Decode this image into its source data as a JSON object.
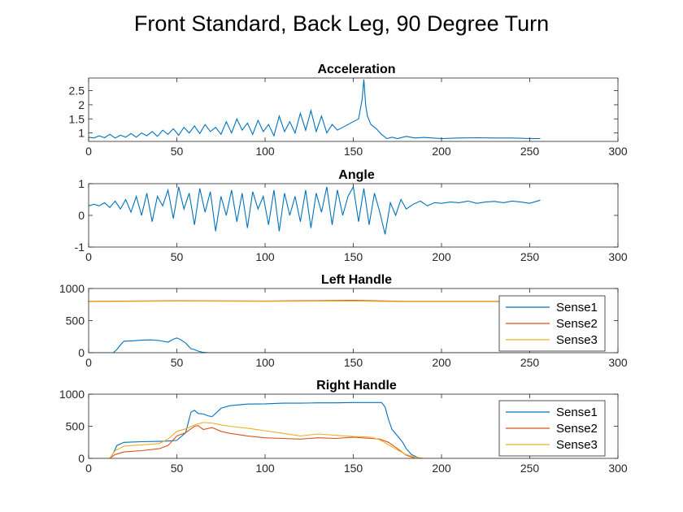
{
  "figure": {
    "title": "Front Standard, Back Leg, 90 Degree Turn"
  },
  "chart_data": [
    {
      "type": "line",
      "title": "Acceleration",
      "xlabel": "",
      "ylabel": "",
      "xlim": [
        0,
        300
      ],
      "ylim": [
        0.7,
        2.95
      ],
      "xticks": [
        0,
        50,
        100,
        150,
        200,
        250,
        300
      ],
      "yticks": [
        1,
        1.5,
        2,
        2.5
      ],
      "ytick_labels": [
        "1",
        "1.5",
        "2",
        "2.5"
      ],
      "legend": null,
      "series": [
        {
          "color": "#0072BD",
          "x": [
            0,
            3,
            6,
            9,
            12,
            15,
            18,
            21,
            24,
            27,
            30,
            33,
            36,
            39,
            42,
            45,
            48,
            51,
            54,
            57,
            60,
            63,
            66,
            69,
            72,
            75,
            78,
            81,
            84,
            87,
            90,
            93,
            96,
            99,
            102,
            105,
            108,
            111,
            114,
            117,
            120,
            123,
            126,
            129,
            132,
            135,
            138,
            141,
            144,
            147,
            150,
            153,
            155,
            156,
            157,
            158,
            160,
            163,
            166,
            169,
            172,
            175,
            180,
            185,
            190,
            195,
            200,
            210,
            220,
            230,
            240,
            250,
            256
          ],
          "y": [
            0.85,
            0.82,
            0.9,
            0.83,
            0.95,
            0.82,
            0.92,
            0.85,
            0.98,
            0.85,
            1.0,
            0.9,
            1.05,
            0.88,
            1.1,
            0.95,
            1.15,
            0.92,
            1.2,
            1.0,
            1.25,
            0.98,
            1.3,
            1.05,
            1.2,
            0.95,
            1.4,
            1.0,
            1.5,
            1.1,
            1.35,
            0.95,
            1.45,
            1.05,
            1.3,
            0.9,
            1.6,
            1.05,
            1.4,
            1.0,
            1.7,
            1.1,
            1.8,
            1.05,
            1.6,
            1.0,
            1.3,
            1.1,
            1.2,
            1.3,
            1.4,
            1.5,
            2.2,
            2.9,
            2.0,
            1.6,
            1.3,
            1.15,
            0.95,
            0.8,
            0.85,
            0.8,
            0.88,
            0.82,
            0.84,
            0.82,
            0.8,
            0.82,
            0.83,
            0.82,
            0.82,
            0.8,
            0.8
          ]
        }
      ]
    },
    {
      "type": "line",
      "title": "Angle",
      "xlabel": "",
      "ylabel": "",
      "xlim": [
        0,
        300
      ],
      "ylim": [
        -1,
        1
      ],
      "xticks": [
        0,
        50,
        100,
        150,
        200,
        250,
        300
      ],
      "yticks": [
        -1,
        0,
        1
      ],
      "ytick_labels": [
        "-1",
        "0",
        "1"
      ],
      "legend": null,
      "series": [
        {
          "color": "#0072BD",
          "x": [
            0,
            3,
            6,
            9,
            12,
            15,
            18,
            21,
            24,
            27,
            30,
            33,
            36,
            39,
            42,
            45,
            48,
            51,
            54,
            57,
            60,
            63,
            66,
            69,
            72,
            75,
            78,
            81,
            84,
            87,
            90,
            93,
            96,
            99,
            102,
            105,
            108,
            111,
            114,
            117,
            120,
            123,
            126,
            129,
            132,
            135,
            138,
            141,
            144,
            147,
            150,
            153,
            156,
            159,
            162,
            165,
            168,
            171,
            174,
            177,
            180,
            184,
            188,
            192,
            196,
            200,
            205,
            210,
            215,
            220,
            225,
            230,
            235,
            240,
            245,
            250,
            256
          ],
          "y": [
            0.3,
            0.35,
            0.3,
            0.4,
            0.25,
            0.45,
            0.2,
            0.5,
            0.1,
            0.6,
            0.0,
            0.7,
            -0.2,
            0.6,
            0.3,
            0.8,
            -0.1,
            0.9,
            0.2,
            0.7,
            -0.3,
            0.85,
            0.1,
            0.75,
            -0.5,
            0.6,
            0.0,
            0.8,
            -0.2,
            0.7,
            -0.4,
            0.75,
            0.2,
            0.6,
            -0.3,
            0.8,
            -0.5,
            0.7,
            0.0,
            0.6,
            -0.2,
            0.8,
            -0.4,
            0.7,
            0.1,
            0.9,
            -0.3,
            0.8,
            0.0,
            0.6,
            0.9,
            -0.2,
            0.85,
            -0.3,
            0.7,
            0.1,
            -0.6,
            0.4,
            0.0,
            0.5,
            0.2,
            0.35,
            0.45,
            0.3,
            0.4,
            0.38,
            0.42,
            0.4,
            0.45,
            0.38,
            0.42,
            0.44,
            0.4,
            0.45,
            0.42,
            0.38,
            0.48
          ]
        }
      ]
    },
    {
      "type": "line",
      "title": "Left Handle",
      "xlabel": "",
      "ylabel": "",
      "xlim": [
        0,
        300
      ],
      "ylim": [
        0,
        1000
      ],
      "xticks": [
        0,
        50,
        100,
        150,
        200,
        250,
        300
      ],
      "yticks": [
        0,
        500,
        1000
      ],
      "ytick_labels": [
        "0",
        "500",
        "1000"
      ],
      "legend": {
        "entries": [
          "Sense1",
          "Sense2",
          "Sense3"
        ],
        "position": "right"
      },
      "series": [
        {
          "name": "Sense1",
          "color": "#0072BD",
          "x": [
            0,
            14,
            16,
            18,
            20,
            25,
            30,
            35,
            40,
            45,
            48,
            50,
            52,
            55,
            58,
            60,
            62,
            65,
            68,
            256
          ],
          "y": [
            0,
            0,
            50,
            120,
            180,
            185,
            195,
            200,
            190,
            165,
            210,
            230,
            205,
            150,
            60,
            50,
            25,
            5,
            0,
            0
          ]
        },
        {
          "name": "Sense2",
          "color": "#D95319",
          "x": [
            0,
            50,
            100,
            150,
            180,
            256
          ],
          "y": [
            800,
            810,
            805,
            815,
            800,
            800
          ]
        },
        {
          "name": "Sense3",
          "color": "#EDB120",
          "x": [
            0,
            50,
            100,
            150,
            180,
            256
          ],
          "y": [
            795,
            805,
            800,
            805,
            795,
            795
          ]
        }
      ]
    },
    {
      "type": "line",
      "title": "Right Handle",
      "xlabel": "",
      "ylabel": "",
      "xlim": [
        0,
        300
      ],
      "ylim": [
        0,
        1000
      ],
      "xticks": [
        0,
        50,
        100,
        150,
        200,
        250,
        300
      ],
      "yticks": [
        0,
        500,
        1000
      ],
      "ytick_labels": [
        "0",
        "500",
        "1000"
      ],
      "legend": {
        "entries": [
          "Sense1",
          "Sense2",
          "Sense3"
        ],
        "position": "top-right"
      },
      "series": [
        {
          "name": "Sense1",
          "color": "#0072BD",
          "x": [
            0,
            12,
            14,
            16,
            20,
            30,
            40,
            45,
            50,
            55,
            58,
            60,
            62,
            65,
            68,
            70,
            72,
            75,
            80,
            90,
            100,
            110,
            120,
            130,
            140,
            150,
            160,
            166,
            168,
            170,
            172,
            175,
            178,
            180,
            183,
            186,
            188,
            256
          ],
          "y": [
            0,
            0,
            80,
            200,
            250,
            260,
            265,
            270,
            280,
            400,
            720,
            750,
            700,
            690,
            660,
            650,
            700,
            780,
            820,
            845,
            850,
            860,
            860,
            865,
            865,
            870,
            870,
            870,
            800,
            600,
            450,
            350,
            250,
            150,
            60,
            20,
            0,
            0
          ]
        },
        {
          "name": "Sense2",
          "color": "#D95319",
          "x": [
            0,
            12,
            15,
            20,
            30,
            40,
            45,
            50,
            55,
            60,
            62,
            65,
            70,
            75,
            80,
            90,
            100,
            110,
            120,
            130,
            140,
            150,
            160,
            165,
            170,
            175,
            180,
            185,
            188,
            190,
            256
          ],
          "y": [
            0,
            0,
            60,
            100,
            120,
            150,
            200,
            350,
            400,
            500,
            510,
            450,
            480,
            420,
            390,
            350,
            320,
            310,
            300,
            320,
            310,
            330,
            310,
            300,
            250,
            150,
            50,
            0,
            0,
            0,
            0
          ]
        },
        {
          "name": "Sense3",
          "color": "#EDB120",
          "x": [
            0,
            12,
            15,
            20,
            25,
            30,
            40,
            45,
            50,
            55,
            60,
            65,
            70,
            75,
            80,
            90,
            100,
            110,
            120,
            130,
            140,
            150,
            160,
            165,
            170,
            175,
            180,
            185,
            190,
            256
          ],
          "y": [
            0,
            0,
            120,
            190,
            200,
            210,
            230,
            300,
            420,
            460,
            520,
            560,
            550,
            520,
            500,
            470,
            430,
            390,
            350,
            380,
            360,
            340,
            330,
            290,
            210,
            130,
            60,
            20,
            0,
            0
          ]
        }
      ]
    }
  ]
}
